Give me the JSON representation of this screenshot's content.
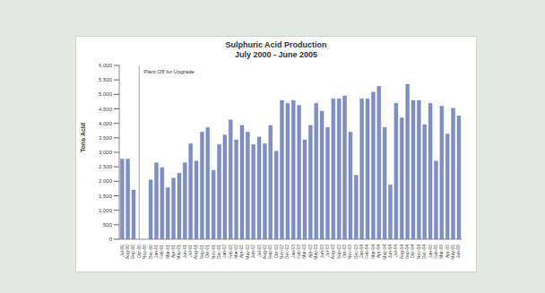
{
  "chart_data": {
    "type": "bar",
    "title": "Sulphuric Acid Production",
    "subtitle": "July 2000 - June 2005",
    "y_label": "Tons Acid",
    "categories": [
      "Jul-00",
      "Aug-00",
      "Sep-00",
      "Oct-00",
      "Nov-00",
      "Dec-00",
      "Jan-01",
      "Feb-01",
      "Mar-01",
      "Apr-01",
      "May-01",
      "Jun-01",
      "Jul-01",
      "Aug-01",
      "Sep-01",
      "Oct-01",
      "Nov-01",
      "Dec-01",
      "Jan-02",
      "Feb-02",
      "Mar-02",
      "Apr-02",
      "May-02",
      "Jun-02",
      "Jul-02",
      "Aug-02",
      "Sep-02",
      "Oct-02",
      "Nov-02",
      "Dec-02",
      "Jan-03",
      "Feb-03",
      "Mar-03",
      "Apr-03",
      "May-03",
      "Jun-03",
      "Jul-03",
      "Aug-03",
      "Sep-03",
      "Oct-03",
      "Nov-03",
      "Dec-03",
      "Jan-04",
      "Feb-04",
      "Mar-04",
      "Apr-04",
      "May-04",
      "Jun-04",
      "Jul-04",
      "Aug-04",
      "Sep-04",
      "Oct-04",
      "Nov-04",
      "Dec-04",
      "Jan-05",
      "Feb-05",
      "Mar-05",
      "Apr-05",
      "May-05",
      "Jun-05"
    ],
    "values": [
      2770,
      2770,
      1700,
      0,
      0,
      2050,
      2640,
      2475,
      1780,
      2110,
      2280,
      2640,
      3300,
      2700,
      3700,
      3860,
      2380,
      3270,
      3600,
      4125,
      3430,
      3930,
      3700,
      3270,
      3530,
      3300,
      3930,
      3040,
      4790,
      4690,
      4790,
      4620,
      3430,
      3930,
      4690,
      4420,
      3860,
      4850,
      4850,
      4950,
      3700,
      2210,
      4850,
      4850,
      5080,
      5280,
      3860,
      1880,
      4690,
      4190,
      5350,
      4790,
      4790,
      3960,
      4690,
      2700,
      4590,
      3630,
      4520,
      4260
    ],
    "color": "#7f8fc6",
    "ylim": [
      0,
      6000
    ],
    "yticks": [
      0,
      500,
      {
        "value": 1000,
        "label": "1,000"
      },
      {
        "value": 1500,
        "label": "1,500"
      },
      {
        "value": 2000,
        "label": "2,000"
      },
      {
        "value": 2500,
        "label": "2,500"
      },
      {
        "value": 3000,
        "label": "3,000"
      },
      {
        "value": 3500,
        "label": "3,500"
      },
      {
        "value": 4000,
        "label": "4,000"
      },
      {
        "value": 4500,
        "label": "4,500"
      },
      {
        "value": 5000,
        "label": "5,000"
      },
      {
        "value": 5500,
        "label": "5,500"
      },
      {
        "value": 6000,
        "label": "6,000"
      }
    ],
    "grid": false,
    "annotations": [
      {
        "text": "Plant Off for Upgrade",
        "at": 3
      }
    ]
  }
}
